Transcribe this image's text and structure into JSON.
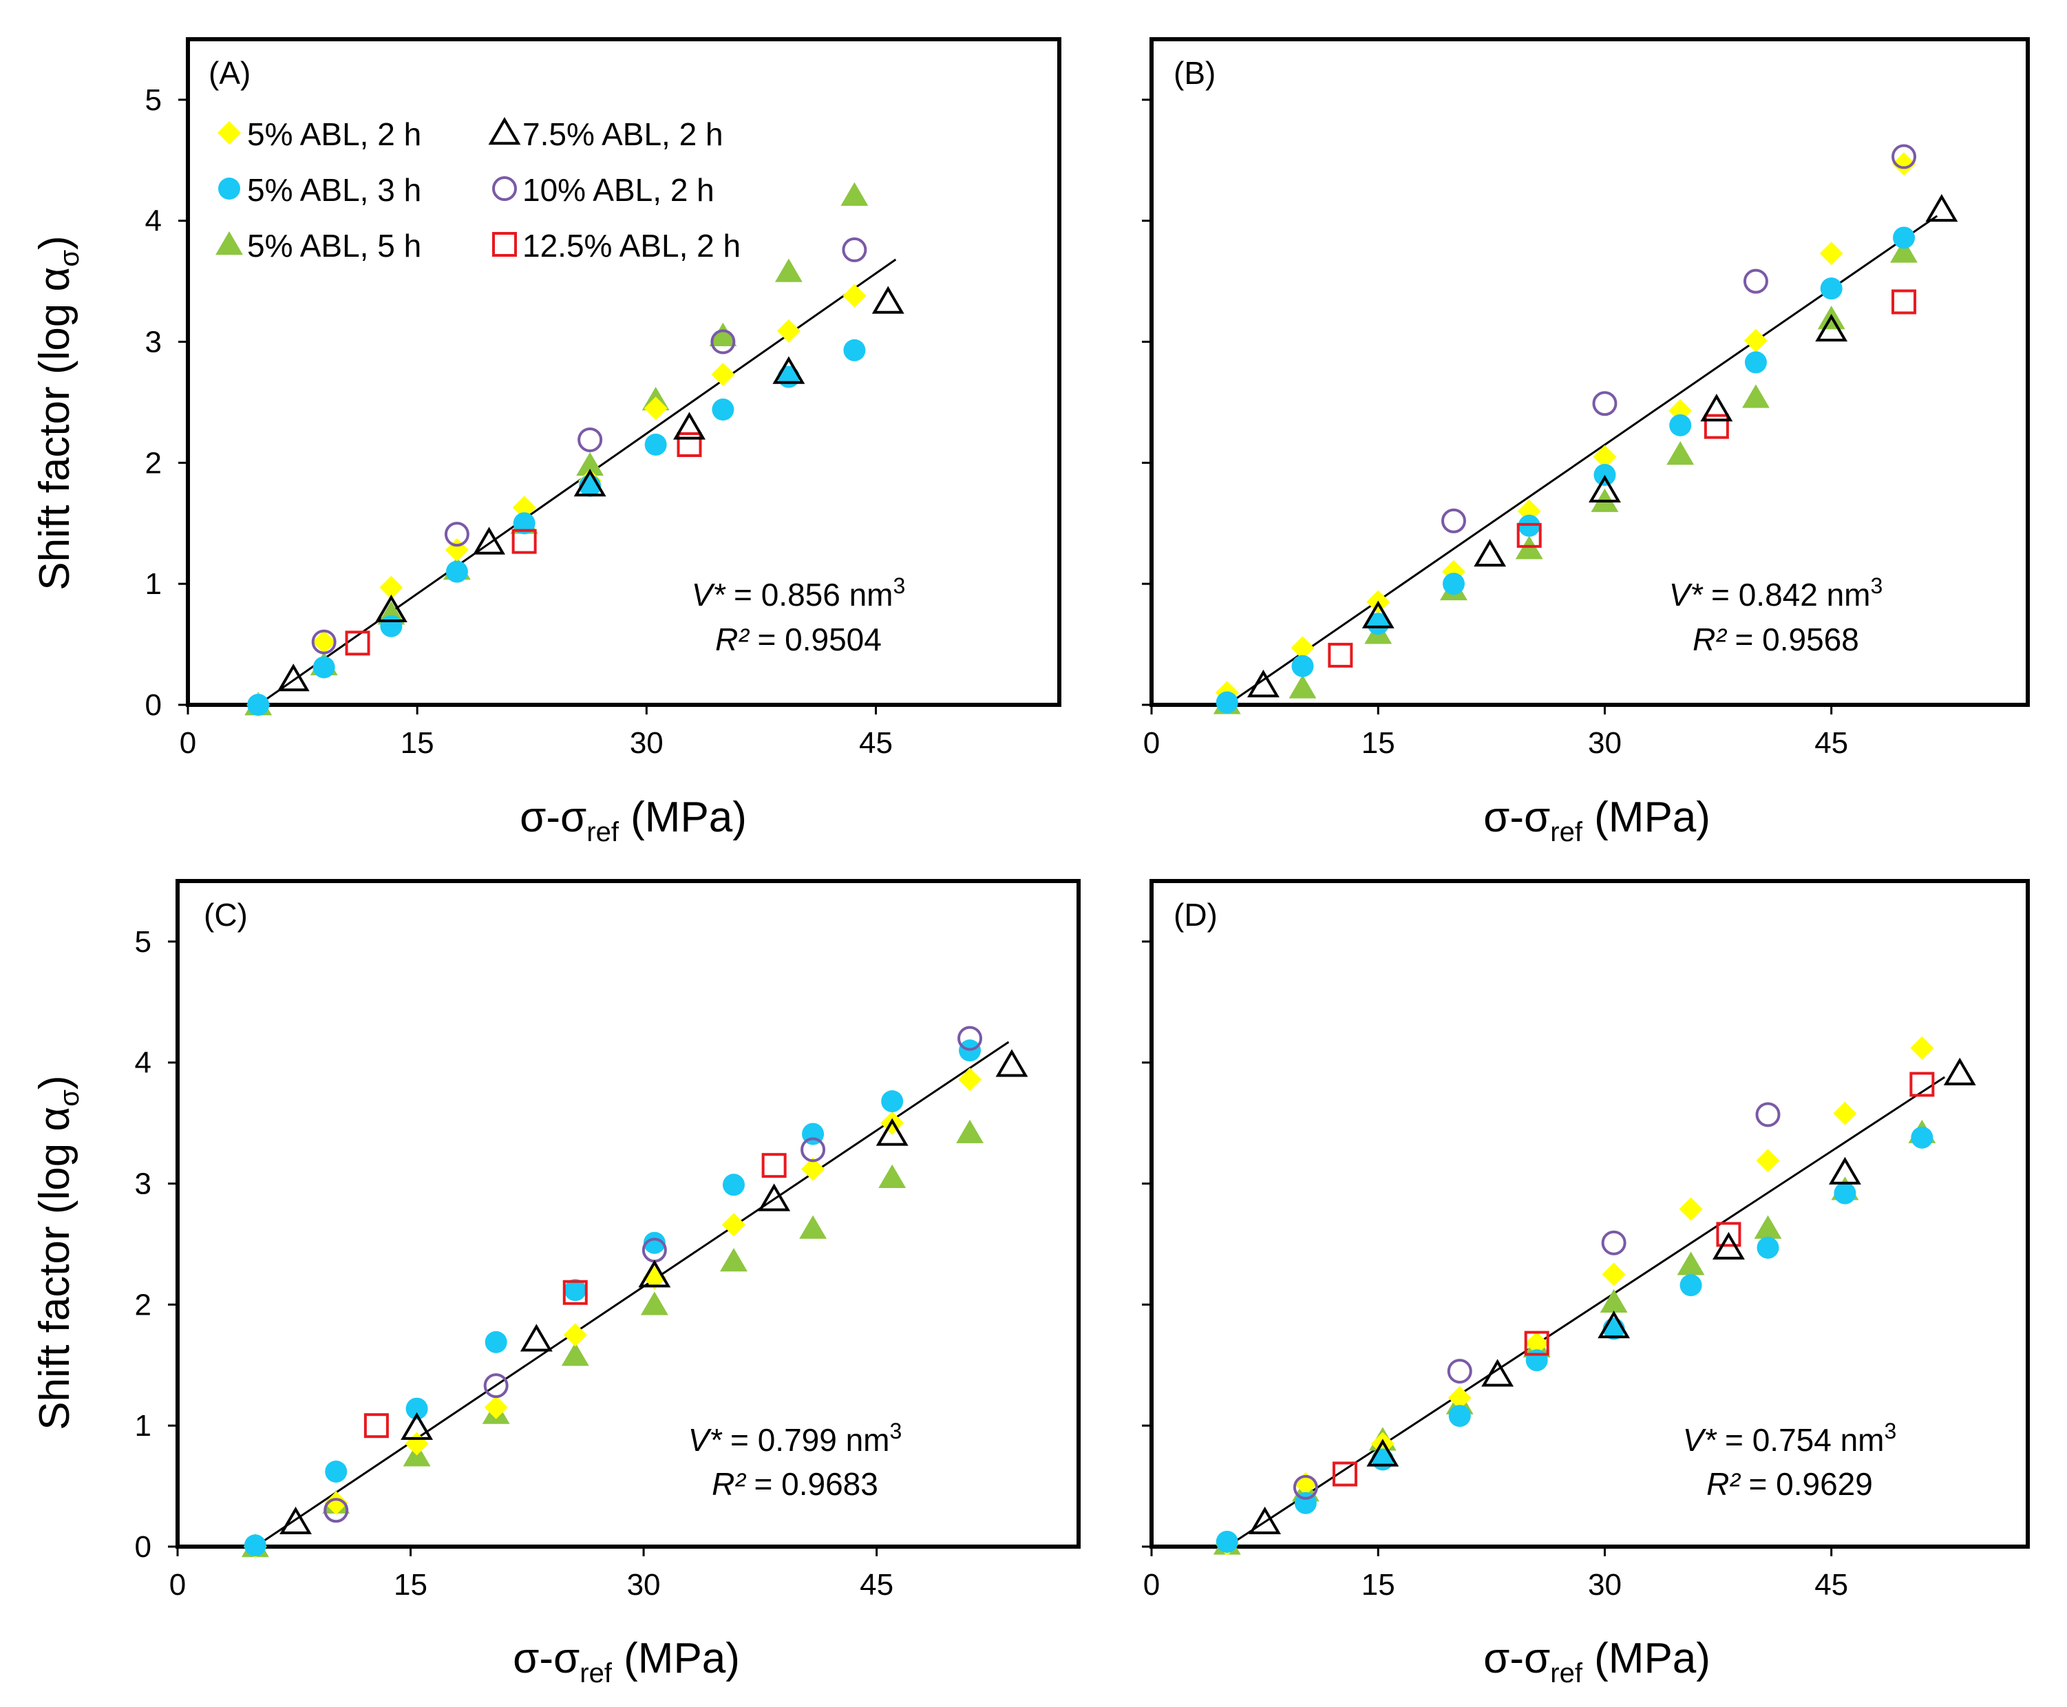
{
  "figure": {
    "y_axis_title": "Shift factor (log α",
    "y_axis_title_sub": "σ",
    "y_axis_title_end": ")",
    "x_axis_title": "σ-σ",
    "x_axis_title_sub": "ref",
    "x_axis_title_end": " (MPa)"
  },
  "series_styles": [
    {
      "name": "5% ABL, 2 h",
      "marker": "diamond-filled",
      "color": "#FFFF00"
    },
    {
      "name": "5% ABL, 3 h",
      "marker": "circle-filled",
      "color": "#19C8F5"
    },
    {
      "name": "5% ABL, 5 h",
      "marker": "triangle-filled",
      "color": "#8DC63F"
    },
    {
      "name": "7.5% ABL, 2 h",
      "marker": "triangle-open",
      "color": "#000000"
    },
    {
      "name": "10% ABL, 2 h",
      "marker": "circle-open",
      "color": "#7A5AA6"
    },
    {
      "name": "12.5% ABL, 2 h",
      "marker": "square-open",
      "color": "#E8191F"
    }
  ],
  "chart_data": [
    {
      "type": "scatter",
      "panel_label": "(A)",
      "xlim": [
        0,
        57
      ],
      "ylim": [
        0,
        5.5
      ],
      "xticks": [
        0,
        15,
        30,
        45
      ],
      "yticks": [
        0,
        1,
        2,
        3,
        4,
        5
      ],
      "xlabel": "σ-σref (MPa)",
      "ylabel": "Shift factor (log ασ)",
      "legend": "top-left",
      "annotation": {
        "v_label": "V*",
        "v_text": " = 0.856 nm",
        "v_sup": "3",
        "r_label": "R²",
        "r_text": " = 0.9504"
      },
      "fit": {
        "x": [
          4.6,
          46.3
        ],
        "y": [
          0.0,
          3.68
        ]
      },
      "series": [
        {
          "name": "5% ABL, 2 h",
          "x": [
            4.6,
            8.9,
            13.3,
            17.6,
            22.0,
            26.3,
            30.6,
            35.0,
            39.3,
            43.6
          ],
          "y": [
            0.0,
            0.52,
            0.97,
            1.28,
            1.63,
            1.85,
            2.45,
            2.73,
            3.09,
            3.38
          ]
        },
        {
          "name": "5% ABL, 3 h",
          "x": [
            4.6,
            8.9,
            13.3,
            17.6,
            22.0,
            26.3,
            30.6,
            35.0,
            39.3,
            43.6
          ],
          "y": [
            0.0,
            0.31,
            0.65,
            1.1,
            1.5,
            1.81,
            2.15,
            2.44,
            2.71,
            2.93
          ]
        },
        {
          "name": "5% ABL, 5 h",
          "x": [
            4.6,
            8.9,
            13.3,
            17.6,
            22.0,
            26.3,
            30.6,
            35.0,
            39.3,
            43.6
          ],
          "y": [
            0.0,
            0.33,
            0.75,
            1.12,
            1.5,
            1.98,
            2.52,
            3.05,
            3.58,
            4.21
          ]
        },
        {
          "name": "7.5% ABL, 2 h",
          "x": [
            6.9,
            13.3,
            19.7,
            26.3,
            32.8,
            39.3,
            45.8
          ],
          "y": [
            0.21,
            0.78,
            1.34,
            1.82,
            2.29,
            2.75,
            3.33
          ]
        },
        {
          "name": "10% ABL, 2 h",
          "x": [
            8.9,
            17.6,
            26.3,
            35.0,
            43.6
          ],
          "y": [
            0.52,
            1.41,
            2.19,
            3.0,
            3.76
          ]
        },
        {
          "name": "12.5% ABL, 2 h",
          "x": [
            11.1,
            22.0,
            32.8
          ],
          "y": [
            0.51,
            1.35,
            2.15
          ]
        }
      ]
    },
    {
      "type": "scatter",
      "panel_label": "(B)",
      "xlim": [
        0,
        58
      ],
      "ylim": [
        0,
        5.5
      ],
      "xticks": [
        0,
        15,
        30,
        45
      ],
      "yticks": [
        0,
        1,
        2,
        3,
        4,
        5
      ],
      "xlabel": "σ-σref (MPa)",
      "ylabel": "",
      "annotation": {
        "v_label": "V*",
        "v_text": " = 0.842 nm",
        "v_sup": "3",
        "r_label": "R²",
        "r_text": " = 0.9568"
      },
      "fit": {
        "x": [
          5.0,
          52.0
        ],
        "y": [
          0.0,
          4.04
        ]
      },
      "series": [
        {
          "name": "5% ABL, 2 h",
          "x": [
            5,
            10,
            15,
            20,
            25,
            30,
            35,
            40,
            45,
            49.8
          ],
          "y": [
            0.1,
            0.47,
            0.85,
            1.1,
            1.6,
            2.05,
            2.43,
            3.01,
            3.73,
            4.47
          ]
        },
        {
          "name": "5% ABL, 3 h",
          "x": [
            5,
            10,
            15,
            20,
            25,
            30,
            35,
            40,
            45,
            49.8
          ],
          "y": [
            0.02,
            0.32,
            0.67,
            1.0,
            1.48,
            1.9,
            2.31,
            2.83,
            3.44,
            3.86
          ]
        },
        {
          "name": "5% ABL, 5 h",
          "x": [
            5,
            10,
            15,
            20,
            25,
            30,
            35,
            40,
            45,
            49.8
          ],
          "y": [
            0.01,
            0.14,
            0.59,
            0.95,
            1.29,
            1.68,
            2.07,
            2.54,
            3.19,
            3.74
          ]
        },
        {
          "name": "7.5% ABL, 2 h",
          "x": [
            7.4,
            15,
            22.4,
            30,
            37.4,
            45,
            52.3
          ],
          "y": [
            0.16,
            0.73,
            1.24,
            1.77,
            2.44,
            3.1,
            4.09
          ]
        },
        {
          "name": "10% ABL, 2 h",
          "x": [
            20,
            30,
            40,
            49.8
          ],
          "y": [
            1.52,
            2.49,
            3.5,
            4.53
          ]
        },
        {
          "name": "12.5% ABL, 2 h",
          "x": [
            12.5,
            25,
            37.4,
            49.8
          ],
          "y": [
            0.41,
            1.4,
            2.3,
            3.33
          ]
        }
      ]
    },
    {
      "type": "scatter",
      "panel_label": "(C)",
      "xlim": [
        0,
        58
      ],
      "ylim": [
        0,
        5.5
      ],
      "xticks": [
        0,
        15,
        30,
        45
      ],
      "yticks": [
        0,
        1,
        2,
        3,
        4,
        5
      ],
      "xlabel": "σ-σref (MPa)",
      "ylabel": "Shift factor (log ασ)",
      "annotation": {
        "v_label": "V*",
        "v_text": " = 0.799 nm",
        "v_sup": "3",
        "r_label": "R²",
        "r_text": " = 0.9683"
      },
      "fit": {
        "x": [
          5.0,
          53.5
        ],
        "y": [
          0.0,
          4.17
        ]
      },
      "series": [
        {
          "name": "5% ABL, 2 h",
          "x": [
            5.0,
            10.2,
            15.4,
            20.5,
            25.6,
            30.7,
            35.8,
            40.9,
            46.0,
            51.0
          ],
          "y": [
            0.0,
            0.36,
            0.85,
            1.15,
            1.75,
            2.22,
            2.66,
            3.12,
            3.5,
            3.86
          ]
        },
        {
          "name": "5% ABL, 3 h",
          "x": [
            5.0,
            10.2,
            15.4,
            20.5,
            25.6,
            30.7,
            35.8,
            40.9,
            46.0,
            51.0
          ],
          "y": [
            0.01,
            0.62,
            1.14,
            1.69,
            2.12,
            2.51,
            2.99,
            3.41,
            3.68,
            4.1
          ]
        },
        {
          "name": "5% ABL, 5 h",
          "x": [
            5.0,
            10.2,
            15.4,
            20.5,
            25.6,
            30.7,
            35.8,
            40.9,
            46.0,
            51.0
          ],
          "y": [
            0.0,
            0.36,
            0.75,
            1.1,
            1.58,
            2.0,
            2.36,
            2.63,
            3.05,
            3.42
          ]
        },
        {
          "name": "7.5% ABL, 2 h",
          "x": [
            7.6,
            15.4,
            23.1,
            30.7,
            38.4,
            46.0,
            53.7
          ],
          "y": [
            0.2,
            0.98,
            1.71,
            2.24,
            2.87,
            3.41,
            3.98
          ]
        },
        {
          "name": "10% ABL, 2 h",
          "x": [
            10.2,
            20.5,
            30.7,
            40.9,
            51.0
          ],
          "y": [
            0.3,
            1.33,
            2.45,
            3.28,
            4.2
          ]
        },
        {
          "name": "12.5% ABL, 2 h",
          "x": [
            12.8,
            25.6,
            38.4
          ],
          "y": [
            1.0,
            2.1,
            3.15
          ]
        }
      ]
    },
    {
      "type": "scatter",
      "panel_label": "(D)",
      "xlim": [
        0,
        58
      ],
      "ylim": [
        0,
        5.5
      ],
      "xticks": [
        0,
        15,
        30,
        45
      ],
      "yticks": [
        0,
        1,
        2,
        3,
        4,
        5
      ],
      "xlabel": "σ-σref (MPa)",
      "ylabel": "",
      "annotation": {
        "v_label": "V*",
        "v_text": " = 0.754 nm",
        "v_sup": "3",
        "r_label": "R²",
        "r_text": " = 0.9629"
      },
      "fit": {
        "x": [
          5.0,
          52.5
        ],
        "y": [
          0.0,
          3.88
        ]
      },
      "series": [
        {
          "name": "5% ABL, 2 h",
          "x": [
            5.0,
            10.2,
            15.3,
            20.4,
            25.5,
            30.6,
            35.7,
            40.8,
            45.9,
            51.0
          ],
          "y": [
            0.02,
            0.52,
            0.85,
            1.23,
            1.68,
            2.25,
            2.79,
            3.19,
            3.58,
            4.12
          ]
        },
        {
          "name": "5% ABL, 3 h",
          "x": [
            5.0,
            10.2,
            15.3,
            20.4,
            25.5,
            30.6,
            35.7,
            40.8,
            45.9,
            51.0
          ],
          "y": [
            0.04,
            0.36,
            0.72,
            1.08,
            1.54,
            1.8,
            2.16,
            2.47,
            2.92,
            3.38
          ]
        },
        {
          "name": "5% ABL, 5 h",
          "x": [
            5.0,
            10.2,
            15.3,
            20.4,
            25.5,
            30.6,
            35.7,
            40.8,
            45.9,
            51.0
          ],
          "y": [
            0.02,
            0.46,
            0.88,
            1.18,
            1.65,
            2.02,
            2.33,
            2.63,
            2.95,
            3.42
          ]
        },
        {
          "name": "7.5% ABL, 2 h",
          "x": [
            7.5,
            15.3,
            22.9,
            30.6,
            38.2,
            45.9,
            53.5
          ],
          "y": [
            0.2,
            0.76,
            1.42,
            1.82,
            2.47,
            3.09,
            3.91
          ]
        },
        {
          "name": "10% ABL, 2 h",
          "x": [
            10.2,
            20.4,
            30.6,
            40.8
          ],
          "y": [
            0.49,
            1.45,
            2.51,
            3.57
          ]
        },
        {
          "name": "12.5% ABL, 2 h",
          "x": [
            12.8,
            25.5,
            38.2,
            51.0
          ],
          "y": [
            0.6,
            1.68,
            2.58,
            3.82
          ]
        }
      ]
    }
  ]
}
